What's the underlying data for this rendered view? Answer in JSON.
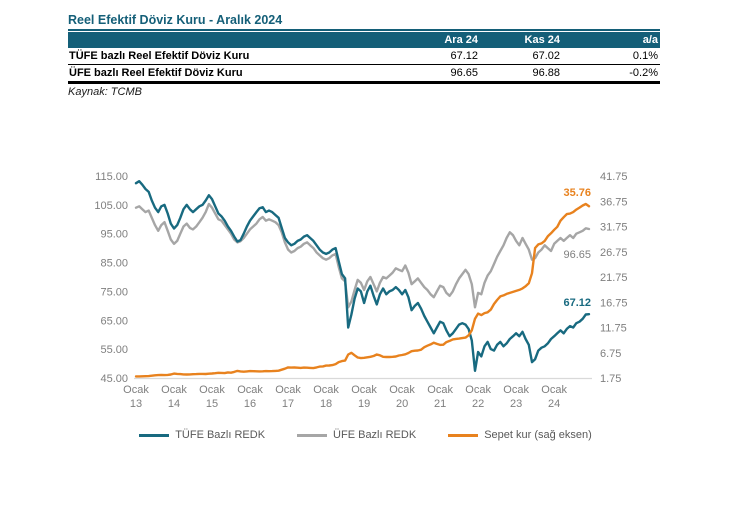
{
  "title": "Reel Efektif Döviz Kuru - Aralık 2024",
  "table": {
    "headers": [
      "Ara 24",
      "Kas 24",
      "a/a"
    ],
    "rows": [
      {
        "label": "TÜFE bazlı Reel Efektif Döviz Kuru",
        "values": [
          "67.12",
          "67.02",
          "0.1%"
        ]
      },
      {
        "label": "ÜFE bazlı Reel Efektif Döviz Kuru",
        "values": [
          "96.65",
          "96.88",
          "-0.2%"
        ]
      }
    ],
    "source": "Kaynak: TCMB"
  },
  "colors": {
    "teal": "#145F78",
    "series_tufe": "#186A80",
    "series_ufe": "#A6A6A6",
    "series_sepet": "#E8821E",
    "axis_text": "#7F7F7F",
    "legend_text": "#595959",
    "baseline": "#D9D9D9"
  },
  "chart_data": {
    "type": "line",
    "title": "",
    "x_start": "Ocak 2013",
    "x_end": "Aralık 2024",
    "points_per_year": 12,
    "x_ticks": [
      [
        "Ocak",
        "13"
      ],
      [
        "Ocak",
        "14"
      ],
      [
        "Ocak",
        "15"
      ],
      [
        "Ocak",
        "16"
      ],
      [
        "Ocak",
        "17"
      ],
      [
        "Ocak",
        "18"
      ],
      [
        "Ocak",
        "19"
      ],
      [
        "Ocak",
        "20"
      ],
      [
        "Ocak",
        "21"
      ],
      [
        "Ocak",
        "22"
      ],
      [
        "Ocak",
        "23"
      ],
      [
        "Ocak",
        "24"
      ]
    ],
    "left_axis": {
      "min": 45,
      "max": 115,
      "ticks": [
        "115.00",
        "105.00",
        "95.00",
        "85.00",
        "75.00",
        "65.00",
        "55.00",
        "45.00"
      ]
    },
    "right_axis": {
      "min": 1.75,
      "max": 41.75,
      "ticks": [
        "41.75",
        "36.75",
        "31.75",
        "26.75",
        "21.75",
        "16.75",
        "11.75",
        "6.75",
        "1.75"
      ]
    },
    "grid": false,
    "legend_position": "bottom",
    "series": [
      {
        "name": "TÜFE Bazlı REDK",
        "axis": "left",
        "color": "#186A80",
        "end_label": "67.12",
        "end_label_color": "#186A80",
        "end_label_bold": true,
        "end_label_dy": -8,
        "values": [
          112.5,
          113.2,
          112.0,
          110.5,
          109.5,
          106.5,
          104.0,
          102.5,
          104.5,
          105.0,
          102.0,
          98.5,
          96.8,
          98.0,
          100.5,
          103.5,
          105.0,
          103.5,
          102.5,
          103.5,
          104.5,
          105.0,
          106.5,
          108.3,
          107.0,
          104.5,
          102.0,
          101.0,
          99.5,
          97.5,
          96.0,
          94.0,
          92.3,
          92.8,
          95.0,
          97.5,
          99.5,
          101.0,
          102.5,
          103.8,
          104.2,
          102.5,
          103.0,
          102.5,
          101.5,
          100.5,
          97.0,
          93.5,
          92.0,
          91.0,
          91.5,
          92.5,
          93.0,
          94.0,
          94.5,
          93.5,
          92.5,
          91.0,
          89.5,
          88.5,
          88.0,
          88.5,
          89.5,
          90.0,
          85.5,
          81.0,
          79.5,
          62.5,
          67.0,
          72.5,
          76.0,
          75.0,
          71.0,
          75.0,
          77.0,
          73.5,
          70.5,
          74.0,
          76.0,
          74.0,
          75.0,
          75.5,
          76.5,
          75.5,
          74.0,
          75.5,
          73.0,
          68.5,
          70.0,
          71.0,
          69.0,
          66.5,
          64.5,
          62.5,
          60.5,
          62.5,
          64.5,
          64.0,
          61.5,
          59.5,
          60.5,
          62.0,
          63.5,
          64.0,
          63.5,
          62.0,
          58.0,
          47.5,
          54.0,
          52.5,
          56.0,
          57.5,
          55.0,
          54.5,
          56.5,
          57.5,
          56.0,
          57.0,
          58.5,
          59.5,
          60.5,
          59.5,
          61.0,
          58.5,
          56.5,
          50.5,
          51.5,
          54.5,
          55.5,
          56.0,
          57.0,
          58.5,
          59.5,
          60.5,
          61.5,
          60.5,
          62.0,
          63.0,
          62.5,
          64.0,
          64.5,
          65.5,
          67.02,
          67.12
        ]
      },
      {
        "name": "ÜFE Bazlı REDK",
        "axis": "left",
        "color": "#A6A6A6",
        "end_label": "96.65",
        "end_label_color": "#808080",
        "end_label_bold": false,
        "end_label_dy": 29,
        "values": [
          104.0,
          104.5,
          103.5,
          102.5,
          103.0,
          100.5,
          98.0,
          96.0,
          98.0,
          99.0,
          96.0,
          93.0,
          91.5,
          92.5,
          95.0,
          97.5,
          98.5,
          97.0,
          96.5,
          97.5,
          99.0,
          100.5,
          102.5,
          105.3,
          104.0,
          102.0,
          100.0,
          99.5,
          98.0,
          96.5,
          95.0,
          93.0,
          92.0,
          92.4,
          93.5,
          95.0,
          96.5,
          97.5,
          98.5,
          100.0,
          100.8,
          99.5,
          100.0,
          99.5,
          99.0,
          98.0,
          95.5,
          92.0,
          89.5,
          88.5,
          89.0,
          90.0,
          90.5,
          91.5,
          92.0,
          91.0,
          90.0,
          88.5,
          87.5,
          86.5,
          86.0,
          86.5,
          87.5,
          88.0,
          83.5,
          79.5,
          78.5,
          69.5,
          71.5,
          75.5,
          79.0,
          78.0,
          75.5,
          78.5,
          80.0,
          77.5,
          75.0,
          78.0,
          80.0,
          79.5,
          80.5,
          81.5,
          83.0,
          82.5,
          82.0,
          84.0,
          81.5,
          77.5,
          78.5,
          79.5,
          78.0,
          76.5,
          75.5,
          74.0,
          73.0,
          75.0,
          77.0,
          76.5,
          74.5,
          73.5,
          75.0,
          77.5,
          79.5,
          81.0,
          82.5,
          81.0,
          77.5,
          69.5,
          74.5,
          74.0,
          78.0,
          80.5,
          82.0,
          84.5,
          87.0,
          89.0,
          91.0,
          93.5,
          95.5,
          94.5,
          92.5,
          91.0,
          93.5,
          91.5,
          89.5,
          86.0,
          86.5,
          88.5,
          89.5,
          91.0,
          90.0,
          89.0,
          91.5,
          92.5,
          93.5,
          92.5,
          93.5,
          94.5,
          93.5,
          95.0,
          95.5,
          96.0,
          96.88,
          96.65
        ]
      },
      {
        "name": "Sepet kur (sağ eksen)",
        "axis": "right",
        "color": "#E8821E",
        "end_label": "35.76",
        "end_label_color": "#E8821E",
        "end_label_bold": true,
        "end_label_dy": -10,
        "values": [
          2.06,
          2.07,
          2.08,
          2.1,
          2.12,
          2.2,
          2.28,
          2.33,
          2.36,
          2.33,
          2.37,
          2.45,
          2.62,
          2.57,
          2.52,
          2.47,
          2.45,
          2.47,
          2.5,
          2.53,
          2.56,
          2.56,
          2.55,
          2.6,
          2.65,
          2.7,
          2.78,
          2.75,
          2.72,
          2.85,
          2.8,
          2.95,
          3.15,
          3.05,
          3.0,
          3.05,
          3.12,
          3.1,
          3.08,
          3.05,
          3.08,
          3.12,
          3.1,
          3.12,
          3.15,
          3.2,
          3.4,
          3.6,
          3.85,
          3.8,
          3.82,
          3.78,
          3.75,
          3.8,
          3.78,
          3.75,
          3.72,
          3.85,
          4.0,
          4.05,
          4.2,
          4.22,
          4.3,
          4.5,
          4.9,
          5.1,
          5.2,
          6.4,
          6.75,
          6.25,
          5.8,
          5.7,
          5.75,
          5.85,
          5.95,
          6.1,
          6.4,
          6.25,
          5.95,
          5.9,
          5.9,
          5.95,
          6.0,
          6.2,
          6.3,
          6.45,
          6.7,
          7.05,
          7.15,
          7.2,
          7.35,
          7.85,
          8.15,
          8.4,
          8.75,
          8.5,
          8.3,
          8.35,
          8.85,
          9.1,
          9.4,
          9.5,
          9.55,
          9.65,
          9.75,
          10.2,
          11.2,
          13.5,
          14.5,
          14.2,
          14.6,
          14.75,
          15.3,
          16.4,
          17.2,
          17.9,
          18.1,
          18.4,
          18.6,
          18.8,
          19.0,
          19.2,
          19.5,
          19.9,
          20.5,
          22.5,
          27.5,
          28.2,
          28.4,
          28.9,
          29.8,
          30.4,
          31.1,
          31.7,
          32.9,
          33.6,
          34.2,
          34.3,
          34.6,
          35.1,
          35.5,
          35.9,
          36.2,
          35.76
        ]
      }
    ]
  }
}
